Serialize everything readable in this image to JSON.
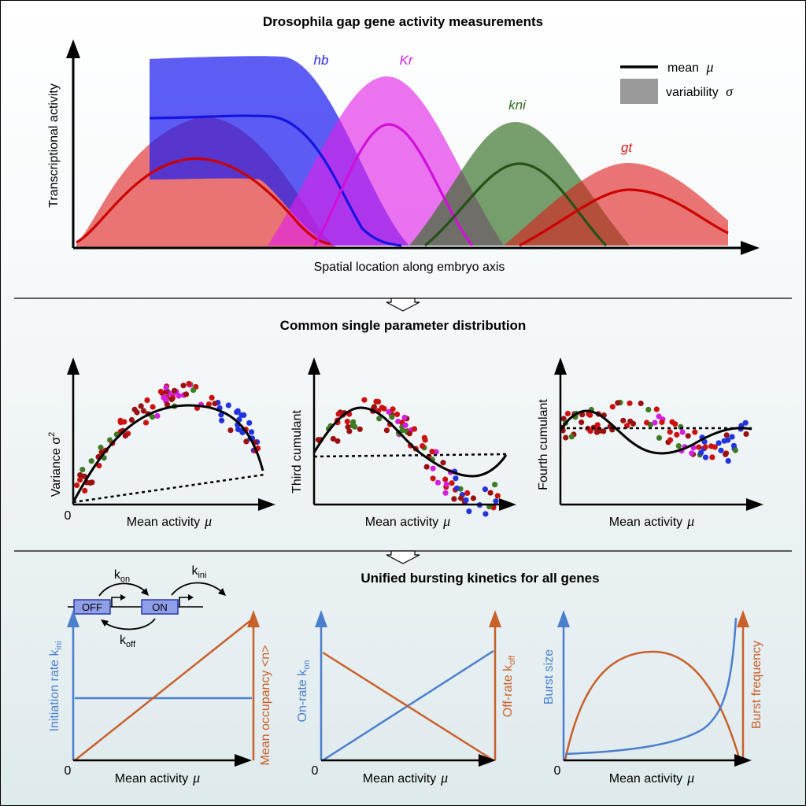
{
  "colors": {
    "hb": "#1f1ff0",
    "Kr": "#e01ee8",
    "kni": "#2f6b1f",
    "gt": "#dd1a1a",
    "axis": "#000000",
    "blue_line": "#4a7fcc",
    "orange_line": "#c8602a",
    "legend_band": "#9a9a9a",
    "dot_red": "#cc1111",
    "dot_darkred": "#991111",
    "dot_green": "#3f7a25",
    "dot_blue": "#2233dd",
    "dot_magenta": "#d21ee0"
  },
  "panel1": {
    "title": "Drosophila gap gene activity measurements",
    "ylabel": "Transcriptional activity",
    "xlabel": "Spatial location along embryo axis",
    "genes": [
      {
        "name": "hb"
      },
      {
        "name": "Kr"
      },
      {
        "name": "kni"
      },
      {
        "name": "gt"
      }
    ],
    "legend": {
      "mean_label": "mean",
      "mean_symbol": "μ",
      "var_label": "variability",
      "var_symbol": "σ"
    }
  },
  "panel2": {
    "title": "Common single parameter distribution",
    "plots": [
      {
        "ylabel": "Variance σ",
        "ylabel_sup": "2",
        "xlabel": "Mean activity",
        "xsym": "μ",
        "zero": "0"
      },
      {
        "ylabel": "Third cumulant",
        "xlabel": "Mean activity",
        "xsym": "μ"
      },
      {
        "ylabel": "Fourth cumulant",
        "xlabel": "Mean activity",
        "xsym": "μ"
      }
    ]
  },
  "panel3": {
    "title": "Unified bursting kinetics for all genes",
    "model": {
      "off_label": "OFF",
      "on_label": "ON",
      "kon": "k",
      "kon_sub": "on",
      "koff": "k",
      "koff_sub": "off",
      "kini": "k",
      "kini_sub": "ini"
    },
    "plots": [
      {
        "left_label": "Initiation rate k",
        "left_sub": "ini",
        "right_label": "Mean occupancy <n>",
        "xlabel": "Mean activity",
        "xsym": "μ",
        "zero": "0"
      },
      {
        "left_label": "On-rate k",
        "left_sub": "on",
        "right_label": "Off-rate k",
        "right_sub": "off",
        "xlabel": "Mean activity",
        "xsym": "μ",
        "zero": "0"
      },
      {
        "left_label": "Burst size",
        "right_label": "Burst frequency",
        "xlabel": "Mean activity",
        "xsym": "μ",
        "zero": "0"
      }
    ]
  }
}
